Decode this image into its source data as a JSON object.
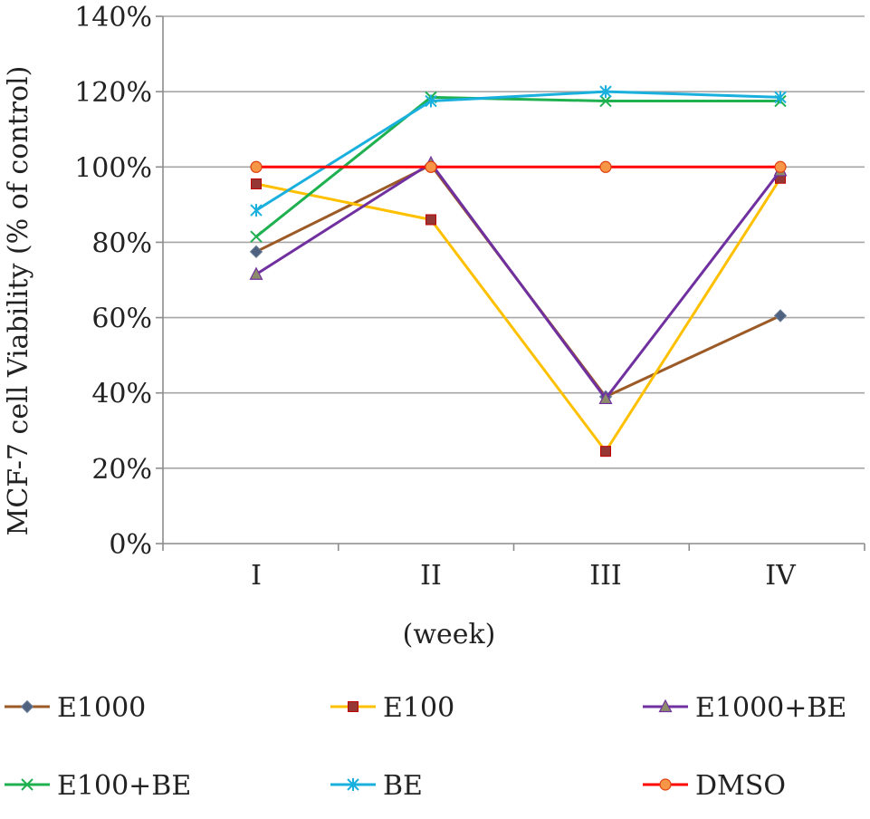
{
  "chart_data": {
    "type": "line",
    "title": "",
    "xlabel": "(week)",
    "ylabel": "MCF-7 cell Viability (% of control)",
    "categories": [
      "I",
      "II",
      "III",
      "IV"
    ],
    "ylim": [
      0,
      140
    ],
    "yticks": [
      0,
      20,
      40,
      60,
      80,
      100,
      120,
      140
    ],
    "ytick_labels": [
      "0%",
      "20%",
      "40%",
      "60%",
      "80%",
      "100%",
      "120%",
      "140%"
    ],
    "grid": "horizontal",
    "legend_position": "bottom",
    "series": [
      {
        "name": "E1000",
        "color": "#9c5a26",
        "marker": "diamond",
        "marker_fill": "#4f6380",
        "values": [
          77.5,
          100.5,
          39,
          60.5
        ]
      },
      {
        "name": "E100",
        "color": "#ffc000",
        "marker": "square",
        "marker_fill": "#953735",
        "values": [
          95.5,
          86,
          24.5,
          97
        ]
      },
      {
        "name": "E1000+BE",
        "color": "#7030a0",
        "marker": "triangle",
        "marker_fill": "#8c8c6a",
        "values": [
          71.5,
          101,
          38.5,
          99
        ]
      },
      {
        "name": "E100+BE",
        "color": "#1fb050",
        "marker": "x",
        "marker_fill": "#1fb050",
        "values": [
          81.5,
          118.5,
          117.5,
          117.5
        ]
      },
      {
        "name": "BE",
        "color": "#1ab0de",
        "marker": "star",
        "marker_fill": "#1ab0de",
        "values": [
          88.5,
          117.5,
          120,
          118.5
        ]
      },
      {
        "name": "DMSO",
        "color": "#ff0000",
        "marker": "circle",
        "marker_fill": "#f79646",
        "values": [
          100,
          100,
          100,
          100
        ]
      }
    ]
  }
}
